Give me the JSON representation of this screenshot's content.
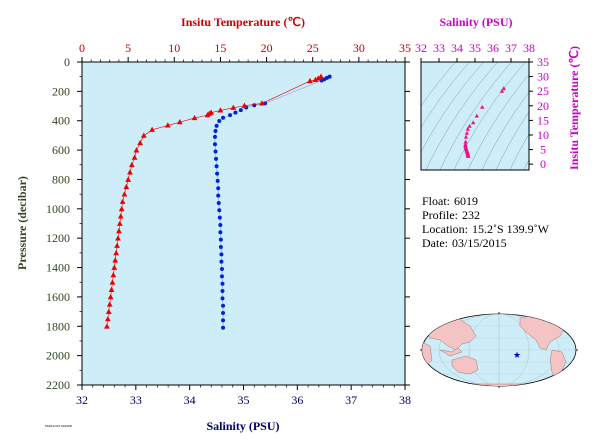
{
  "chart_data": [
    {
      "type": "scatter",
      "name": "profile-plot",
      "top_axis": {
        "label": "Insitu Temperature (℃)",
        "range": [
          0,
          35
        ],
        "ticks": [
          0,
          5,
          10,
          15,
          20,
          25,
          30,
          35
        ],
        "color": "#cc0000"
      },
      "bottom_axis": {
        "label": "Salinity (PSU)",
        "range": [
          32,
          38
        ],
        "ticks": [
          32,
          33,
          34,
          35,
          36,
          37,
          38
        ],
        "color": "#000066"
      },
      "y_axis": {
        "label": "Pressure (decibar)",
        "range": [
          0,
          2200
        ],
        "inverted": true,
        "ticks": [
          0,
          200,
          400,
          600,
          800,
          1000,
          1200,
          1400,
          1600,
          1800,
          2000,
          2200
        ],
        "color": "#334422"
      },
      "background": "#cdeef8",
      "series": [
        {
          "id": "temperature",
          "color": "#ee0000",
          "marker": "triangle",
          "points": [
            [
              25.9,
              100
            ],
            [
              25.6,
              112
            ],
            [
              25.3,
              122
            ],
            [
              24.7,
              130
            ],
            [
              19.5,
              282
            ],
            [
              17.6,
              298
            ],
            [
              16.4,
              312
            ],
            [
              15.0,
              330
            ],
            [
              14.0,
              345
            ],
            [
              13.8,
              352
            ],
            [
              13.6,
              362
            ],
            [
              12.2,
              382
            ],
            [
              10.6,
              410
            ],
            [
              9.3,
              432
            ],
            [
              7.6,
              462
            ],
            [
              6.7,
              502
            ],
            [
              6.3,
              552
            ],
            [
              5.9,
              602
            ],
            [
              5.7,
              652
            ],
            [
              5.4,
              702
            ],
            [
              5.2,
              752
            ],
            [
              5.0,
              802
            ],
            [
              4.8,
              852
            ],
            [
              4.6,
              902
            ],
            [
              4.4,
              952
            ],
            [
              4.3,
              1002
            ],
            [
              4.2,
              1052
            ],
            [
              4.1,
              1102
            ],
            [
              4.0,
              1152
            ],
            [
              3.9,
              1202
            ],
            [
              3.8,
              1252
            ],
            [
              3.7,
              1302
            ],
            [
              3.6,
              1352
            ],
            [
              3.5,
              1402
            ],
            [
              3.4,
              1452
            ],
            [
              3.3,
              1502
            ],
            [
              3.2,
              1552
            ],
            [
              3.1,
              1602
            ],
            [
              3.0,
              1652
            ],
            [
              2.9,
              1702
            ],
            [
              2.8,
              1752
            ],
            [
              2.7,
              1802
            ]
          ]
        },
        {
          "id": "salinity",
          "color": "#0022dd",
          "marker": "circle",
          "points": [
            [
              36.6,
              100
            ],
            [
              36.55,
              108
            ],
            [
              36.5,
              118
            ],
            [
              36.45,
              126
            ],
            [
              35.4,
              282
            ],
            [
              35.2,
              295
            ],
            [
              35.05,
              310
            ],
            [
              34.95,
              328
            ],
            [
              34.85,
              345
            ],
            [
              34.75,
              362
            ],
            [
              34.62,
              380
            ],
            [
              34.55,
              402
            ],
            [
              34.5,
              435
            ],
            [
              34.48,
              470
            ],
            [
              34.47,
              510
            ],
            [
              34.47,
              560
            ],
            [
              34.48,
              610
            ],
            [
              34.49,
              660
            ],
            [
              34.5,
              710
            ],
            [
              34.51,
              760
            ],
            [
              34.52,
              810
            ],
            [
              34.53,
              860
            ],
            [
              34.53,
              910
            ],
            [
              34.54,
              960
            ],
            [
              34.55,
              1010
            ],
            [
              34.56,
              1060
            ],
            [
              34.57,
              1110
            ],
            [
              34.57,
              1160
            ],
            [
              34.58,
              1210
            ],
            [
              34.58,
              1260
            ],
            [
              34.59,
              1310
            ],
            [
              34.59,
              1360
            ],
            [
              34.6,
              1410
            ],
            [
              34.6,
              1460
            ],
            [
              34.61,
              1510
            ],
            [
              34.61,
              1560
            ],
            [
              34.61,
              1610
            ],
            [
              34.62,
              1660
            ],
            [
              34.62,
              1710
            ],
            [
              34.62,
              1760
            ],
            [
              34.62,
              1810
            ]
          ]
        }
      ]
    },
    {
      "type": "scatter",
      "name": "ts-diagram",
      "top_axis": {
        "label": "Salinity (PSU)",
        "range": [
          32,
          38
        ],
        "ticks": [
          32,
          33,
          34,
          35,
          36,
          37,
          38
        ],
        "color": "#cc00cc"
      },
      "right_axis": {
        "label": "Insitu Temperature (℃)",
        "range": [
          -2,
          35
        ],
        "ticks": [
          0,
          5,
          10,
          15,
          20,
          25,
          30,
          35
        ],
        "color": "#cc00cc"
      },
      "background": "#cdeef8",
      "series": [
        {
          "id": "ts-points",
          "color": "#ee1188",
          "marker": "triangle",
          "points": [
            [
              36.6,
              25.9
            ],
            [
              36.5,
              25.0
            ],
            [
              35.4,
              19.5
            ],
            [
              35.1,
              16.5
            ],
            [
              34.9,
              14.2
            ],
            [
              34.7,
              13.0
            ],
            [
              34.6,
              12.0
            ],
            [
              34.55,
              10.6
            ],
            [
              34.5,
              9.3
            ],
            [
              34.48,
              7.6
            ],
            [
              34.47,
              6.7
            ],
            [
              34.47,
              6.3
            ],
            [
              34.48,
              5.9
            ],
            [
              34.5,
              5.4
            ],
            [
              34.52,
              5.0
            ],
            [
              34.54,
              4.6
            ],
            [
              34.56,
              4.3
            ],
            [
              34.58,
              4.0
            ],
            [
              34.59,
              3.7
            ],
            [
              34.6,
              3.4
            ],
            [
              34.61,
              3.1
            ],
            [
              34.62,
              2.8
            ],
            [
              34.62,
              2.7
            ]
          ]
        }
      ]
    }
  ],
  "float_info": {
    "float_label": "Float:",
    "float_value": "6019",
    "profile_label": "Profile:",
    "profile_value": "232",
    "location_label": "Location:",
    "location_value": "15.2˚S  139.9˚W",
    "date_label": "Date:",
    "date_value": "03/15/2015"
  },
  "map": {
    "ocean_color": "#cdeef8",
    "land_color": "#f4c4c4",
    "marker_color": "#0000cc",
    "marker_icon": "star-icon"
  },
  "footnote": "PARFLOAT 6019PR"
}
